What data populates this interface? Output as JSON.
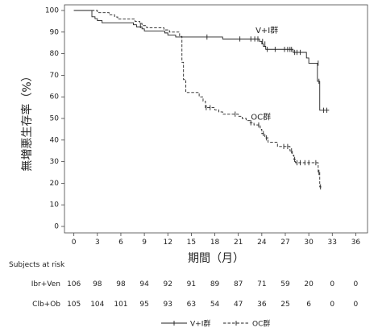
{
  "chart_data": {
    "type": "line",
    "title": "",
    "xlabel": "期間（月）",
    "ylabel": "無増悪生存率（%）",
    "xlim": [
      -1.2,
      37.5
    ],
    "ylim": [
      0,
      100
    ],
    "xticks": [
      0,
      3,
      6,
      9,
      12,
      15,
      18,
      21,
      24,
      27,
      30,
      33,
      36
    ],
    "yticks": [
      0,
      10,
      20,
      30,
      40,
      50,
      60,
      70,
      80,
      90,
      100
    ],
    "grid": false,
    "series": [
      {
        "name": "V+I群",
        "line_style": "solid",
        "color": "#222222",
        "steps": [
          [
            0,
            100
          ],
          [
            2.3,
            97.1
          ],
          [
            2.7,
            96.2
          ],
          [
            3.0,
            95.3
          ],
          [
            3.6,
            94.3
          ],
          [
            7.6,
            93.4
          ],
          [
            8.0,
            92.4
          ],
          [
            8.7,
            91.5
          ],
          [
            9.0,
            90.5
          ],
          [
            11.6,
            89.6
          ],
          [
            12.0,
            88.6
          ],
          [
            13.0,
            87.7
          ],
          [
            19.0,
            86.8
          ],
          [
            23.7,
            85.7
          ],
          [
            24.0,
            84.5
          ],
          [
            24.2,
            83.4
          ],
          [
            24.5,
            82.0
          ],
          [
            28.0,
            80.6
          ],
          [
            29.7,
            78.0
          ],
          [
            30.0,
            75.6
          ],
          [
            31.1,
            67.2
          ],
          [
            31.4,
            53.8
          ],
          [
            32.6,
            53.8
          ]
        ],
        "censored": [
          [
            17.0,
            87.7
          ],
          [
            21.2,
            86.8
          ],
          [
            22.6,
            86.8
          ],
          [
            23.1,
            86.8
          ],
          [
            23.5,
            86.8
          ],
          [
            24.1,
            85.7
          ],
          [
            24.4,
            84.5
          ],
          [
            24.7,
            82.0
          ],
          [
            25.7,
            82.0
          ],
          [
            26.9,
            82.0
          ],
          [
            27.3,
            82.0
          ],
          [
            27.6,
            82.0
          ],
          [
            27.8,
            82.0
          ],
          [
            28.2,
            80.6
          ],
          [
            28.5,
            80.6
          ],
          [
            28.9,
            80.6
          ],
          [
            31.2,
            75.6
          ],
          [
            31.3,
            67.2
          ],
          [
            31.9,
            53.8
          ],
          [
            32.3,
            53.8
          ]
        ]
      },
      {
        "name": "OC群",
        "line_style": "dashed",
        "color": "#222222",
        "steps": [
          [
            0,
            100
          ],
          [
            3.0,
            99.0
          ],
          [
            4.5,
            98.0
          ],
          [
            5.2,
            97.0
          ],
          [
            5.6,
            96.0
          ],
          [
            7.8,
            95.0
          ],
          [
            8.4,
            94.0
          ],
          [
            8.7,
            93.0
          ],
          [
            9.3,
            92.0
          ],
          [
            11.5,
            91.0
          ],
          [
            12.2,
            90.0
          ],
          [
            13.5,
            88.0
          ],
          [
            13.8,
            76.0
          ],
          [
            14.0,
            68.0
          ],
          [
            14.3,
            62.0
          ],
          [
            16.0,
            60.0
          ],
          [
            16.5,
            58.0
          ],
          [
            16.8,
            55.0
          ],
          [
            18.0,
            54.0
          ],
          [
            18.5,
            53.0
          ],
          [
            19.0,
            52.0
          ],
          [
            21.0,
            51.0
          ],
          [
            21.5,
            50.0
          ],
          [
            22.0,
            49.0
          ],
          [
            22.5,
            48.0
          ],
          [
            23.0,
            47.0
          ],
          [
            23.8,
            45.0
          ],
          [
            24.0,
            43.0
          ],
          [
            24.4,
            41.0
          ],
          [
            24.8,
            39.0
          ],
          [
            26.0,
            37.0
          ],
          [
            27.6,
            35.0
          ],
          [
            27.9,
            33.0
          ],
          [
            28.1,
            31.0
          ],
          [
            28.3,
            29.5
          ],
          [
            31.2,
            25.0
          ],
          [
            31.4,
            18.3
          ],
          [
            31.6,
            18.3
          ]
        ],
        "censored": [
          [
            8.5,
            93.0
          ],
          [
            16.9,
            55.0
          ],
          [
            17.4,
            55.0
          ],
          [
            20.6,
            52.0
          ],
          [
            22.6,
            48.0
          ],
          [
            23.6,
            47.0
          ],
          [
            24.2,
            43.0
          ],
          [
            24.6,
            41.0
          ],
          [
            26.8,
            37.0
          ],
          [
            27.3,
            37.0
          ],
          [
            27.8,
            35.0
          ],
          [
            28.2,
            31.0
          ],
          [
            28.5,
            29.5
          ],
          [
            28.9,
            29.5
          ],
          [
            29.5,
            29.5
          ],
          [
            30.0,
            29.5
          ],
          [
            30.9,
            29.5
          ],
          [
            31.3,
            25.0
          ],
          [
            31.5,
            18.3
          ]
        ]
      }
    ],
    "annotations": [
      {
        "text": "V+I群",
        "x": 23.2,
        "y": 89.5
      },
      {
        "text": "OC群",
        "x": 22.6,
        "y": 49.5
      }
    ],
    "legend": {
      "position": "bottom",
      "entries": [
        {
          "label": "V+I群",
          "line_style": "solid"
        },
        {
          "label": "OC群",
          "line_style": "dashed"
        }
      ]
    },
    "risk_table": {
      "header": "Subjects at risk",
      "timepoints": [
        0,
        3,
        6,
        9,
        12,
        15,
        18,
        21,
        24,
        27,
        30,
        33,
        36
      ],
      "rows": [
        {
          "label": "Ibr+Ven",
          "values": [
            "106",
            "98",
            "98",
            "94",
            "92",
            "91",
            "89",
            "87",
            "71",
            "59",
            "20",
            "0",
            "0"
          ]
        },
        {
          "label": "Clb+Ob",
          "values": [
            "105",
            "104",
            "101",
            "95",
            "93",
            "63",
            "54",
            "47",
            "36",
            "25",
            "6",
            "0",
            "0"
          ]
        }
      ]
    }
  }
}
